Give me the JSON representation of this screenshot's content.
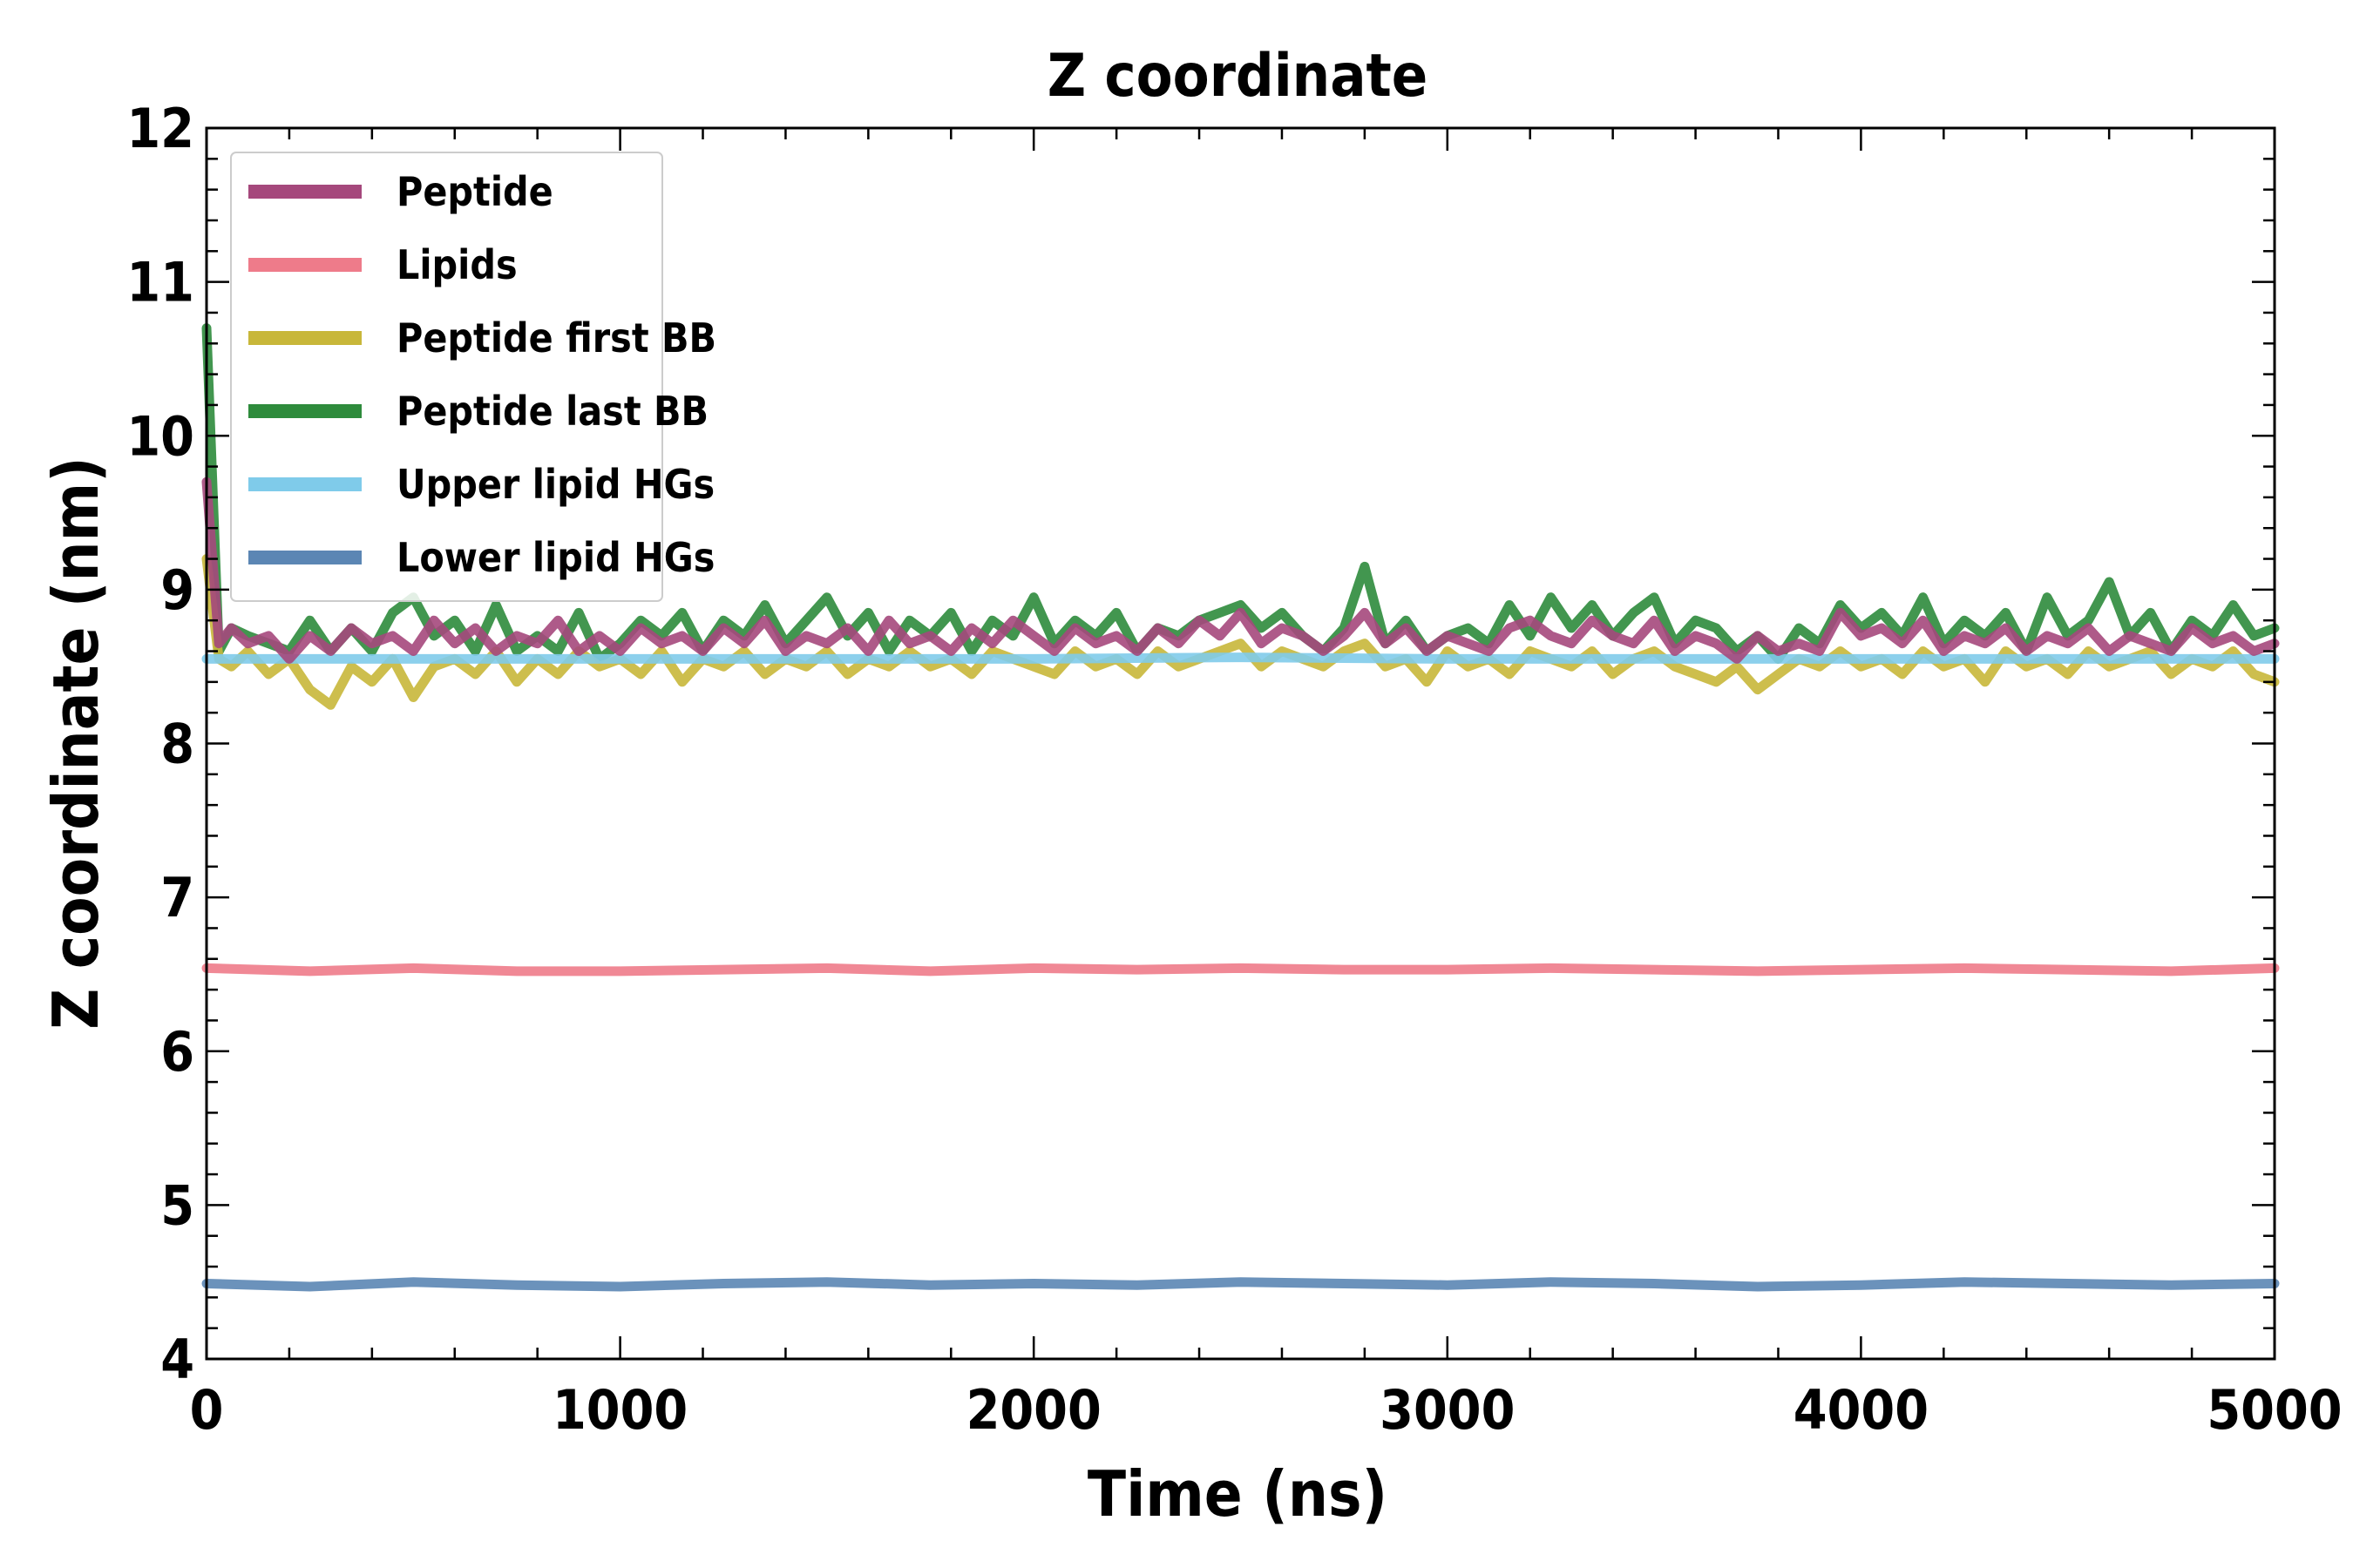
{
  "chart_data": {
    "type": "line",
    "title": "Z coordinate",
    "xlabel": "Time (ns)",
    "ylabel": "Z coordinate (nm)",
    "xlim": [
      0,
      5000
    ],
    "ylim": [
      4,
      12
    ],
    "xticks": [
      0,
      1000,
      2000,
      3000,
      4000,
      5000
    ],
    "yticks": [
      4,
      5,
      6,
      7,
      8,
      9,
      10,
      11,
      12
    ],
    "grid": false,
    "legend": "top-left",
    "series": [
      {
        "name": "Peptide last BB",
        "color": "#2e8b3c",
        "x": [
          0,
          30,
          60,
          100,
          150,
          200,
          250,
          300,
          350,
          400,
          450,
          500,
          550,
          600,
          650,
          700,
          750,
          800,
          850,
          900,
          950,
          1000,
          1050,
          1100,
          1150,
          1200,
          1250,
          1300,
          1350,
          1400,
          1450,
          1500,
          1550,
          1600,
          1650,
          1700,
          1750,
          1800,
          1850,
          1900,
          1950,
          2000,
          2050,
          2100,
          2150,
          2200,
          2250,
          2300,
          2350,
          2400,
          2450,
          2500,
          2550,
          2600,
          2650,
          2700,
          2750,
          2800,
          2850,
          2900,
          2950,
          3000,
          3050,
          3100,
          3150,
          3200,
          3250,
          3300,
          3350,
          3400,
          3450,
          3500,
          3550,
          3600,
          3650,
          3700,
          3750,
          3800,
          3850,
          3900,
          3950,
          4000,
          4050,
          4100,
          4150,
          4200,
          4250,
          4300,
          4350,
          4400,
          4450,
          4500,
          4550,
          4600,
          4650,
          4700,
          4750,
          4800,
          4850,
          4900,
          4950,
          5000
        ],
        "y": [
          10.7,
          8.6,
          8.75,
          8.7,
          8.65,
          8.6,
          8.8,
          8.6,
          8.75,
          8.6,
          8.85,
          8.95,
          8.7,
          8.8,
          8.6,
          8.9,
          8.6,
          8.7,
          8.6,
          8.85,
          8.55,
          8.65,
          8.8,
          8.7,
          8.85,
          8.6,
          8.8,
          8.7,
          8.9,
          8.65,
          8.8,
          8.95,
          8.7,
          8.85,
          8.6,
          8.8,
          8.7,
          8.85,
          8.6,
          8.8,
          8.7,
          8.95,
          8.65,
          8.8,
          8.7,
          8.85,
          8.6,
          8.75,
          8.7,
          8.8,
          8.85,
          8.9,
          8.75,
          8.85,
          8.7,
          8.6,
          8.75,
          9.15,
          8.65,
          8.8,
          8.6,
          8.7,
          8.75,
          8.65,
          8.9,
          8.7,
          8.95,
          8.75,
          8.9,
          8.7,
          8.85,
          8.95,
          8.65,
          8.8,
          8.75,
          8.6,
          8.7,
          8.55,
          8.75,
          8.65,
          8.9,
          8.75,
          8.85,
          8.7,
          8.95,
          8.65,
          8.8,
          8.7,
          8.85,
          8.6,
          8.95,
          8.7,
          8.8,
          9.05,
          8.7,
          8.85,
          8.6,
          8.8,
          8.7,
          8.9,
          8.7,
          8.75
        ]
      },
      {
        "name": "Peptide first BB",
        "color": "#c8b73a",
        "x": [
          0,
          30,
          60,
          100,
          150,
          200,
          250,
          300,
          350,
          400,
          450,
          500,
          550,
          600,
          650,
          700,
          750,
          800,
          850,
          900,
          950,
          1000,
          1050,
          1100,
          1150,
          1200,
          1250,
          1300,
          1350,
          1400,
          1450,
          1500,
          1550,
          1600,
          1650,
          1700,
          1750,
          1800,
          1850,
          1900,
          1950,
          2000,
          2050,
          2100,
          2150,
          2200,
          2250,
          2300,
          2350,
          2400,
          2450,
          2500,
          2550,
          2600,
          2650,
          2700,
          2750,
          2800,
          2850,
          2900,
          2950,
          3000,
          3050,
          3100,
          3150,
          3200,
          3250,
          3300,
          3350,
          3400,
          3450,
          3500,
          3550,
          3600,
          3650,
          3700,
          3750,
          3800,
          3850,
          3900,
          3950,
          4000,
          4050,
          4100,
          4150,
          4200,
          4250,
          4300,
          4350,
          4400,
          4450,
          4500,
          4550,
          4600,
          4650,
          4700,
          4750,
          4800,
          4850,
          4900,
          4950,
          5000
        ],
        "y": [
          9.2,
          8.55,
          8.5,
          8.6,
          8.45,
          8.55,
          8.35,
          8.25,
          8.5,
          8.4,
          8.55,
          8.3,
          8.5,
          8.55,
          8.45,
          8.6,
          8.4,
          8.55,
          8.45,
          8.6,
          8.5,
          8.55,
          8.45,
          8.6,
          8.4,
          8.55,
          8.5,
          8.6,
          8.45,
          8.55,
          8.5,
          8.6,
          8.45,
          8.55,
          8.5,
          8.6,
          8.5,
          8.55,
          8.45,
          8.6,
          8.55,
          8.5,
          8.45,
          8.6,
          8.5,
          8.55,
          8.45,
          8.6,
          8.5,
          8.55,
          8.6,
          8.65,
          8.5,
          8.6,
          8.55,
          8.5,
          8.6,
          8.65,
          8.5,
          8.55,
          8.4,
          8.6,
          8.5,
          8.55,
          8.45,
          8.6,
          8.55,
          8.5,
          8.6,
          8.45,
          8.55,
          8.6,
          8.5,
          8.45,
          8.4,
          8.5,
          8.35,
          8.45,
          8.55,
          8.5,
          8.6,
          8.5,
          8.55,
          8.45,
          8.6,
          8.5,
          8.55,
          8.4,
          8.6,
          8.5,
          8.55,
          8.45,
          8.6,
          8.5,
          8.55,
          8.6,
          8.45,
          8.55,
          8.5,
          8.6,
          8.45,
          8.4
        ]
      },
      {
        "name": "Upper lipid HGs",
        "color": "#7fcbea",
        "x": [
          0,
          500,
          1000,
          1500,
          2000,
          2500,
          3000,
          3500,
          4000,
          4500,
          5000
        ],
        "y": [
          8.55,
          8.55,
          8.55,
          8.55,
          8.55,
          8.56,
          8.55,
          8.55,
          8.55,
          8.55,
          8.55
        ]
      },
      {
        "name": "Peptide",
        "color": "#a5487c",
        "x": [
          0,
          30,
          60,
          100,
          150,
          200,
          250,
          300,
          350,
          400,
          450,
          500,
          550,
          600,
          650,
          700,
          750,
          800,
          850,
          900,
          950,
          1000,
          1050,
          1100,
          1150,
          1200,
          1250,
          1300,
          1350,
          1400,
          1450,
          1500,
          1550,
          1600,
          1650,
          1700,
          1750,
          1800,
          1850,
          1900,
          1950,
          2000,
          2050,
          2100,
          2150,
          2200,
          2250,
          2300,
          2350,
          2400,
          2450,
          2500,
          2550,
          2600,
          2650,
          2700,
          2750,
          2800,
          2850,
          2900,
          2950,
          3000,
          3050,
          3100,
          3150,
          3200,
          3250,
          3300,
          3350,
          3400,
          3450,
          3500,
          3550,
          3600,
          3650,
          3700,
          3750,
          3800,
          3850,
          3900,
          3950,
          4000,
          4050,
          4100,
          4150,
          4200,
          4250,
          4300,
          4350,
          4400,
          4450,
          4500,
          4550,
          4600,
          4650,
          4700,
          4750,
          4800,
          4850,
          4900,
          4950,
          5000
        ],
        "y": [
          9.7,
          8.65,
          8.75,
          8.65,
          8.7,
          8.55,
          8.7,
          8.6,
          8.75,
          8.65,
          8.7,
          8.6,
          8.8,
          8.65,
          8.75,
          8.6,
          8.7,
          8.65,
          8.8,
          8.6,
          8.7,
          8.6,
          8.75,
          8.65,
          8.7,
          8.6,
          8.75,
          8.65,
          8.8,
          8.6,
          8.7,
          8.65,
          8.75,
          8.6,
          8.8,
          8.65,
          8.7,
          8.6,
          8.75,
          8.65,
          8.8,
          8.7,
          8.6,
          8.75,
          8.65,
          8.7,
          8.6,
          8.75,
          8.65,
          8.8,
          8.7,
          8.85,
          8.65,
          8.75,
          8.7,
          8.6,
          8.7,
          8.85,
          8.65,
          8.75,
          8.6,
          8.7,
          8.65,
          8.6,
          8.75,
          8.8,
          8.7,
          8.65,
          8.8,
          8.7,
          8.65,
          8.8,
          8.6,
          8.7,
          8.65,
          8.55,
          8.7,
          8.6,
          8.65,
          8.6,
          8.85,
          8.7,
          8.75,
          8.65,
          8.8,
          8.6,
          8.7,
          8.65,
          8.75,
          8.6,
          8.7,
          8.65,
          8.75,
          8.6,
          8.7,
          8.65,
          8.6,
          8.75,
          8.65,
          8.7,
          8.6,
          8.65
        ]
      },
      {
        "name": "Lipids",
        "color": "#ee7b8a",
        "x": [
          0,
          250,
          500,
          750,
          1000,
          1250,
          1500,
          1750,
          2000,
          2250,
          2500,
          2750,
          3000,
          3250,
          3500,
          3750,
          4000,
          4250,
          4500,
          4750,
          5000
        ],
        "y": [
          6.54,
          6.52,
          6.54,
          6.52,
          6.52,
          6.53,
          6.54,
          6.52,
          6.54,
          6.53,
          6.54,
          6.53,
          6.53,
          6.54,
          6.53,
          6.52,
          6.53,
          6.54,
          6.53,
          6.52,
          6.54
        ]
      },
      {
        "name": "Lower lipid HGs",
        "color": "#5b86b4",
        "x": [
          0,
          250,
          500,
          750,
          1000,
          1250,
          1500,
          1750,
          2000,
          2250,
          2500,
          2750,
          3000,
          3250,
          3500,
          3750,
          4000,
          4250,
          4500,
          4750,
          5000
        ],
        "y": [
          4.49,
          4.47,
          4.5,
          4.48,
          4.47,
          4.49,
          4.5,
          4.48,
          4.49,
          4.48,
          4.5,
          4.49,
          4.48,
          4.5,
          4.49,
          4.47,
          4.48,
          4.5,
          4.49,
          4.48,
          4.49
        ]
      }
    ],
    "legend_order": [
      "Peptide",
      "Lipids",
      "Peptide first BB",
      "Peptide last BB",
      "Upper lipid HGs",
      "Lower lipid HGs"
    ]
  }
}
